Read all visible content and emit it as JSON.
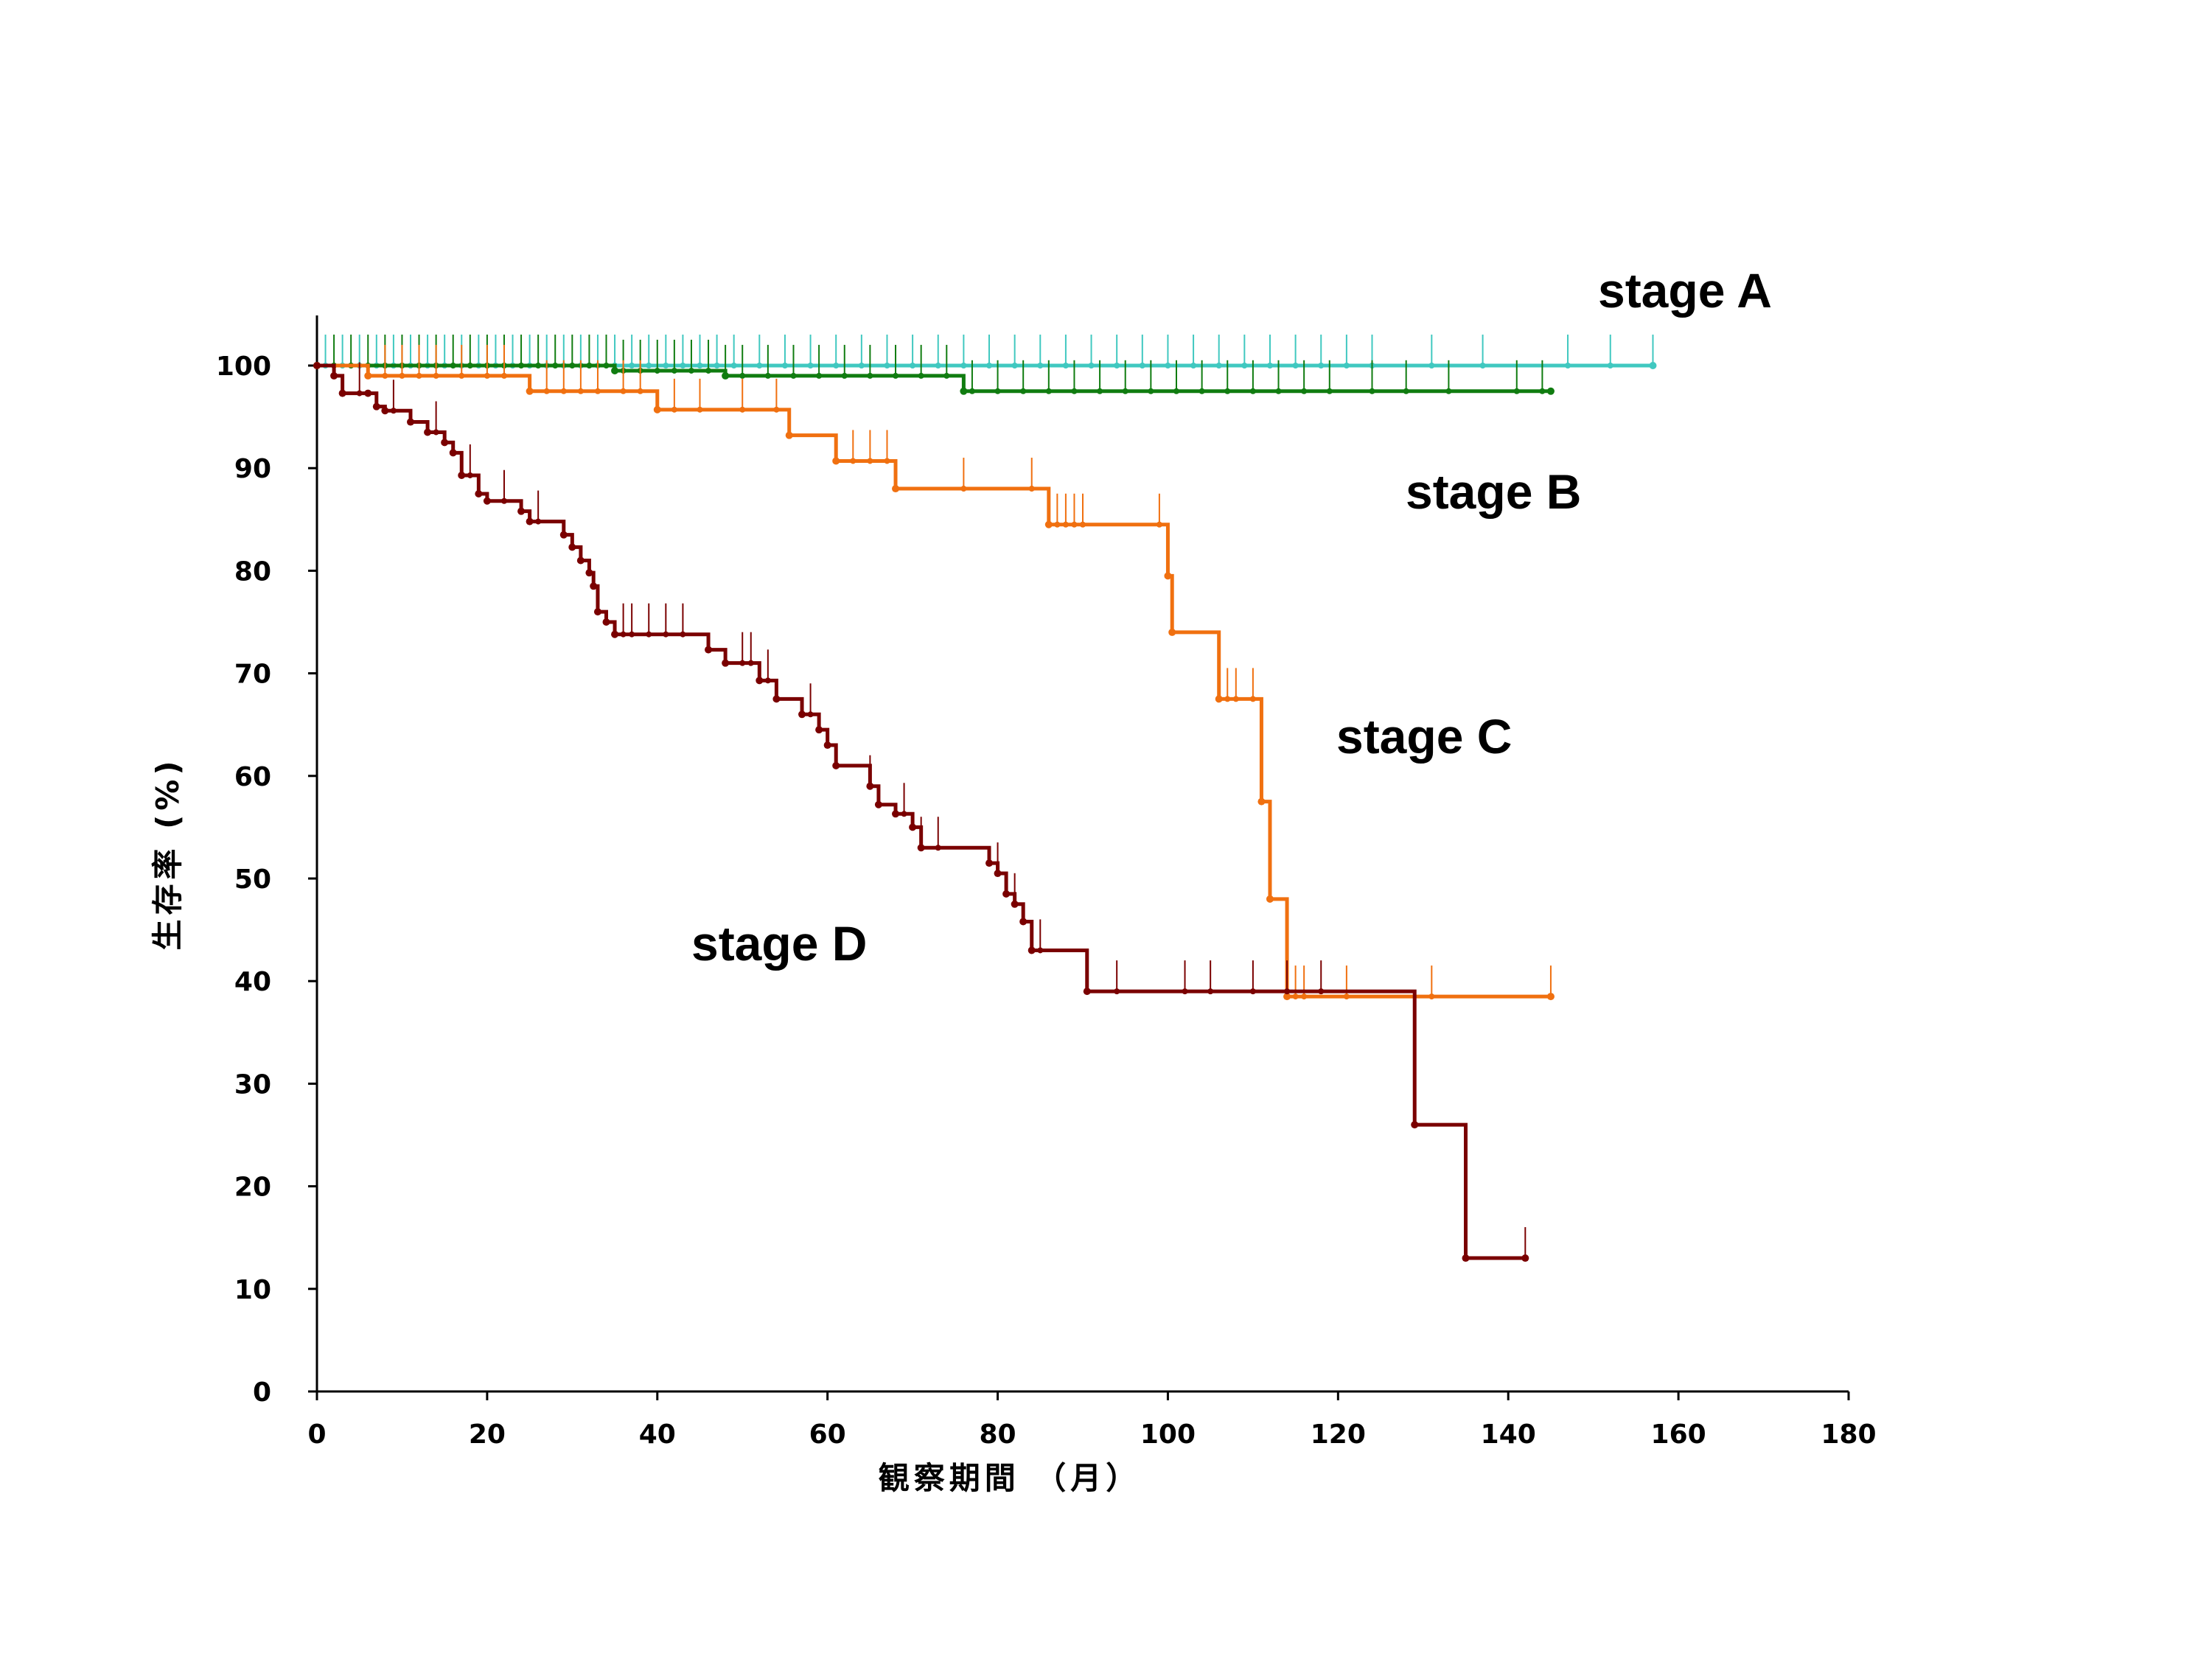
{
  "chart_data": {
    "type": "line",
    "subtype": "kaplan-meier step",
    "title": "",
    "xlabel": "観察期間 （月）",
    "ylabel": "生存率 (%)",
    "xlim": [
      0,
      180
    ],
    "ylim": [
      0,
      100
    ],
    "xticks": [
      0,
      20,
      40,
      60,
      80,
      100,
      120,
      140,
      160,
      180
    ],
    "yticks": [
      0,
      10,
      20,
      30,
      40,
      50,
      60,
      70,
      80,
      90,
      100
    ],
    "grid": false,
    "legend": "none (inline series labels)",
    "series": [
      {
        "name": "stage A",
        "color": "#40c8c0",
        "x": [
          0,
          157
        ],
        "y": [
          100,
          100
        ],
        "censored": [
          1,
          3,
          5,
          7,
          9,
          11,
          13,
          15,
          17,
          19,
          21,
          23,
          25,
          27,
          29,
          31,
          33,
          35,
          37,
          39,
          41,
          43,
          45,
          47,
          49,
          52,
          55,
          58,
          61,
          64,
          67,
          70,
          73,
          76,
          79,
          82,
          85,
          88,
          91,
          94,
          97,
          100,
          103,
          106,
          109,
          112,
          115,
          118,
          121,
          124,
          131,
          137,
          147,
          152,
          157
        ]
      },
      {
        "name": "stage B",
        "color": "#107c10",
        "x": [
          0,
          35,
          48,
          76,
          145
        ],
        "y": [
          100,
          99.5,
          99,
          97.5,
          97.5
        ],
        "censored": [
          2,
          4,
          6,
          8,
          10,
          12,
          14,
          16,
          18,
          20,
          22,
          24,
          26,
          28,
          30,
          32,
          34,
          36,
          38,
          40,
          42,
          44,
          46,
          48,
          50,
          53,
          56,
          59,
          62,
          65,
          68,
          71,
          74,
          77,
          80,
          83,
          86,
          89,
          92,
          95,
          98,
          101,
          104,
          107,
          110,
          113,
          116,
          119,
          124,
          128,
          133,
          141,
          144
        ]
      },
      {
        "name": "stage C",
        "color": "#f07010",
        "x": [
          0,
          6,
          25,
          40,
          55.5,
          61,
          68,
          86,
          100,
          100.5,
          106,
          111,
          112,
          114,
          145
        ],
        "y": [
          100,
          99,
          97.5,
          95.7,
          93.2,
          90.7,
          88,
          84.5,
          79.5,
          74,
          67.5,
          57.5,
          48,
          38.5,
          38.5
        ],
        "censored": [
          8,
          10,
          12,
          14,
          17,
          20,
          22,
          27,
          29,
          31,
          33,
          36,
          38,
          42,
          45,
          50,
          54,
          63,
          65,
          67,
          76,
          84,
          87,
          88,
          89,
          90,
          99,
          100,
          107,
          108,
          110,
          115,
          116,
          121,
          131,
          145
        ]
      },
      {
        "name": "stage D",
        "color": "#7a0000",
        "x": [
          0,
          2,
          3,
          6,
          7,
          8,
          11,
          13,
          15,
          16,
          17,
          19,
          20,
          24,
          25,
          29,
          30,
          31,
          32,
          32.5,
          33,
          34,
          35,
          46,
          48,
          52,
          54,
          57,
          59,
          60,
          61,
          65,
          66,
          68,
          70,
          71,
          79,
          80,
          81,
          82,
          83,
          84,
          90.5,
          129,
          135,
          142
        ],
        "y": [
          100,
          99,
          97.3,
          97.3,
          96,
          95.6,
          94.5,
          93.5,
          92.5,
          91.5,
          89.3,
          87.5,
          86.8,
          85.8,
          84.8,
          83.5,
          82.3,
          81,
          79.8,
          78.5,
          76,
          75,
          73.8,
          72.3,
          71,
          69.3,
          67.5,
          66,
          64.5,
          63,
          61,
          59,
          57.2,
          56.3,
          55,
          53,
          51.5,
          50.5,
          48.5,
          47.5,
          45.8,
          43,
          39,
          26,
          13,
          13
        ],
        "censored": [
          5,
          9,
          14,
          18,
          22,
          26,
          36,
          37,
          39,
          41,
          43,
          50,
          51,
          53,
          58,
          65,
          69,
          71,
          73,
          80,
          82,
          85,
          94,
          102,
          105,
          110,
          114,
          118,
          142
        ]
      }
    ],
    "annotations": [
      "stage A",
      "stage B",
      "stage C",
      "stage D"
    ]
  }
}
